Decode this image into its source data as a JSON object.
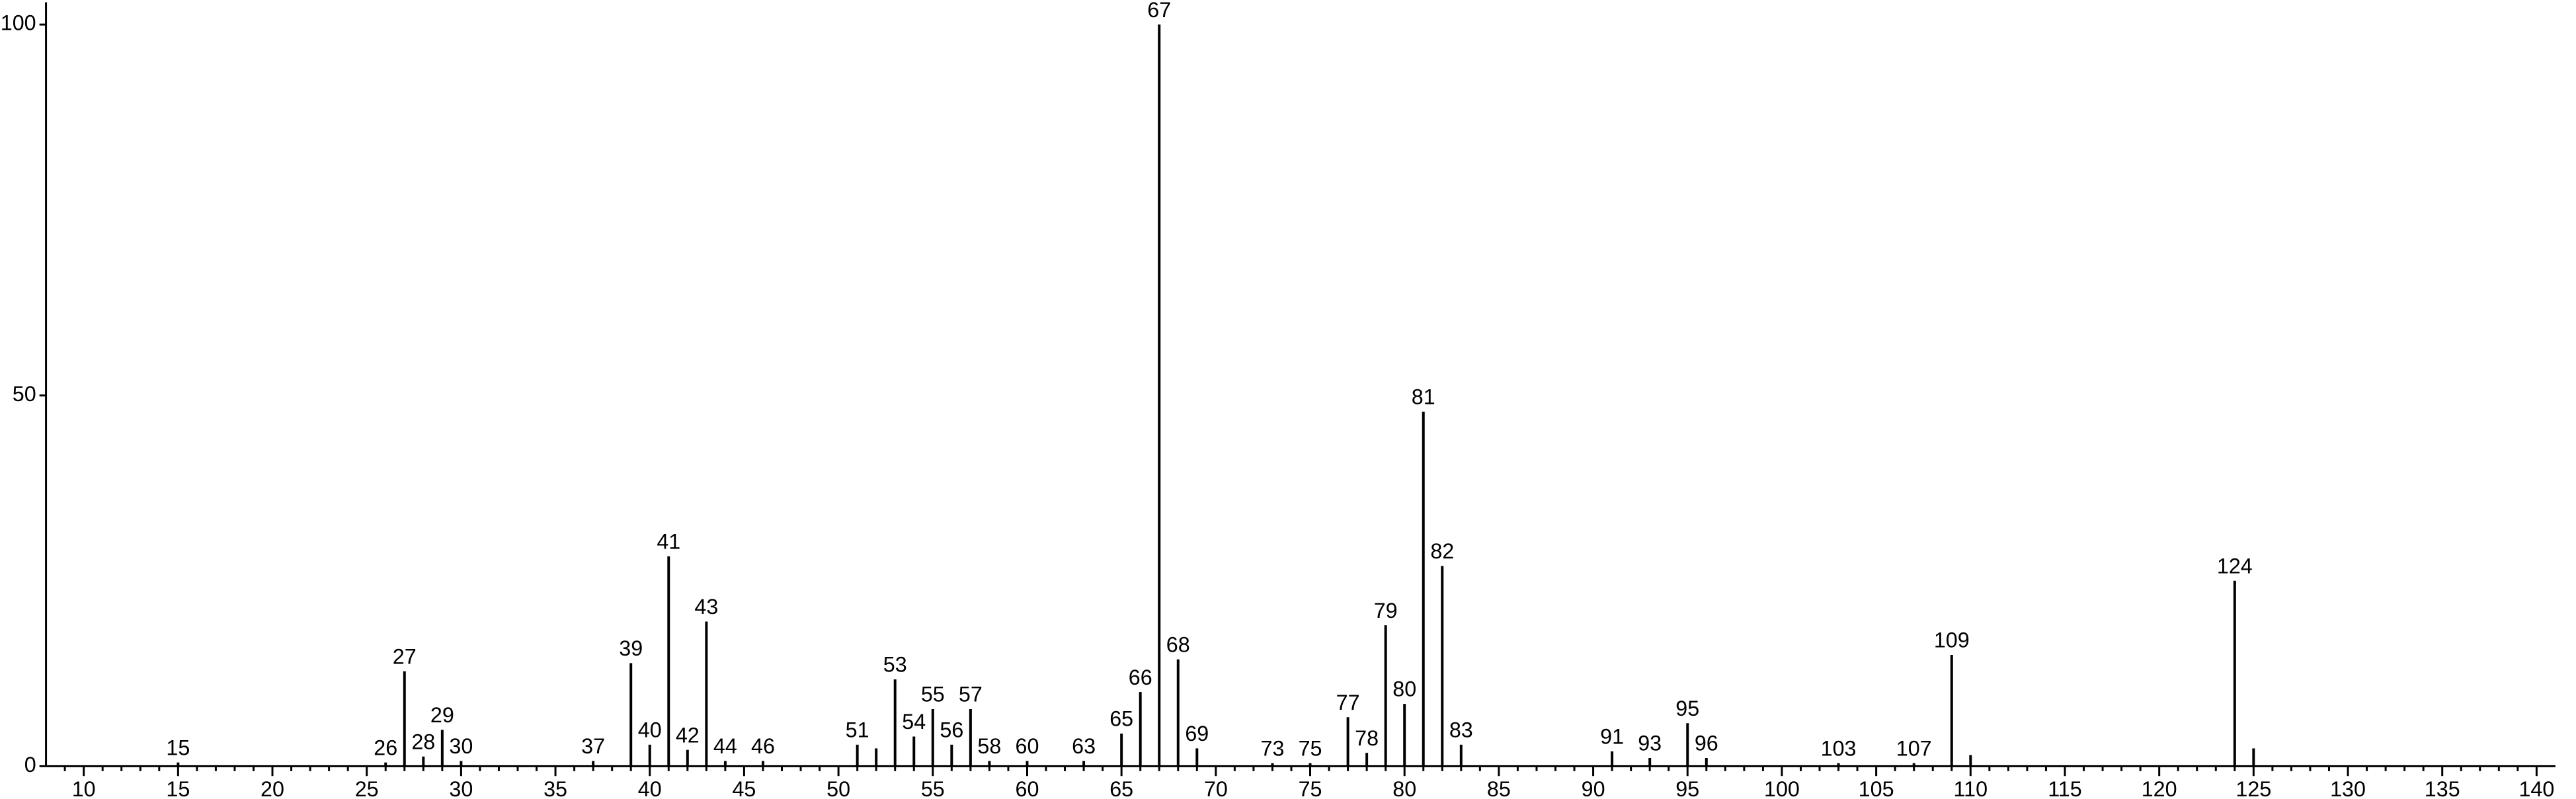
{
  "chart_data": {
    "type": "stick",
    "x": [
      15,
      26,
      27,
      28,
      29,
      30,
      37,
      39,
      40,
      41,
      42,
      43,
      44,
      46,
      51,
      52,
      53,
      54,
      55,
      56,
      57,
      58,
      60,
      63,
      65,
      66,
      67,
      68,
      69,
      73,
      75,
      77,
      78,
      79,
      80,
      81,
      82,
      83,
      91,
      93,
      95,
      96,
      103,
      107,
      109,
      110,
      124,
      125
    ],
    "values": [
      0.5,
      0.5,
      12.8,
      1.3,
      4.9,
      0.7,
      0.7,
      13.9,
      2.9,
      28.3,
      2.2,
      19.5,
      0.7,
      0.7,
      2.9,
      2.4,
      11.7,
      4.0,
      7.7,
      2.9,
      7.7,
      0.7,
      0.7,
      0.7,
      4.4,
      10.0,
      100,
      14.4,
      2.4,
      0.4,
      0.4,
      6.6,
      1.8,
      19.0,
      8.4,
      47.8,
      27.0,
      2.9,
      2.0,
      1.1,
      5.8,
      1.1,
      0.4,
      0.4,
      15.0,
      1.5,
      25.0,
      2.4
    ],
    "peak_labels": [
      15,
      26,
      27,
      28,
      29,
      30,
      37,
      39,
      40,
      41,
      42,
      43,
      44,
      46,
      51,
      null,
      53,
      54,
      55,
      56,
      57,
      58,
      60,
      63,
      65,
      66,
      67,
      68,
      69,
      73,
      75,
      77,
      78,
      79,
      80,
      81,
      82,
      83,
      91,
      93,
      95,
      96,
      103,
      107,
      109,
      null,
      124,
      null
    ],
    "color": "#000000",
    "xlim": [
      8,
      141
    ],
    "ylim": [
      0,
      103
    ],
    "xticks": [
      10,
      15,
      20,
      25,
      30,
      35,
      40,
      45,
      50,
      55,
      60,
      65,
      70,
      75,
      80,
      85,
      90,
      95,
      100,
      105,
      110,
      115,
      120,
      125,
      130,
      135,
      140
    ],
    "xminorticks": [
      9,
      11,
      12,
      13,
      14,
      16,
      17,
      18,
      19,
      21,
      22,
      23,
      24,
      26,
      27,
      28,
      29,
      31,
      32,
      33,
      34,
      36,
      37,
      38,
      39,
      41,
      42,
      43,
      44,
      46,
      47,
      48,
      49,
      51,
      52,
      53,
      54,
      56,
      57,
      58,
      59,
      61,
      62,
      63,
      64,
      66,
      67,
      68,
      69,
      71,
      72,
      73,
      74,
      76,
      77,
      78,
      79,
      81,
      82,
      83,
      84,
      86,
      87,
      88,
      89,
      91,
      92,
      93,
      94,
      96,
      97,
      98,
      99,
      101,
      102,
      103,
      104,
      106,
      107,
      108,
      109,
      111,
      112,
      113,
      114,
      116,
      117,
      118,
      119,
      121,
      122,
      123,
      124,
      126,
      127,
      128,
      129,
      131,
      132,
      133,
      134,
      136,
      137,
      138,
      139
    ],
    "yticks": [
      0,
      50,
      100
    ]
  }
}
